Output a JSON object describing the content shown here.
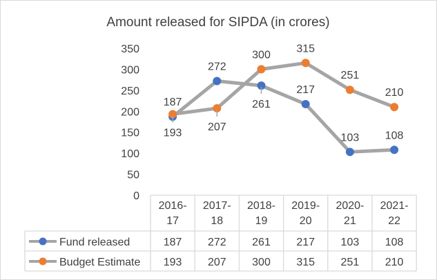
{
  "chart_data": {
    "type": "line",
    "title": "Amount released for SIPDA (in crores)",
    "categories": [
      "2016-17",
      "2017-18",
      "2018-19",
      "2019-20",
      "2020-21",
      "2021-22"
    ],
    "category_lines": [
      [
        "2016-",
        "17"
      ],
      [
        "2017-",
        "18"
      ],
      [
        "2018-",
        "19"
      ],
      [
        "2019-",
        "20"
      ],
      [
        "2020-",
        "21"
      ],
      [
        "2021-",
        "22"
      ]
    ],
    "yticks": [
      0,
      50,
      100,
      150,
      200,
      250,
      300,
      350
    ],
    "ylim": [
      0,
      350
    ],
    "grid": false,
    "legend": "data-table",
    "data_table": true,
    "series": [
      {
        "name": "Fund released",
        "values": [
          187,
          272,
          261,
          217,
          103,
          108
        ],
        "color": "#4472C4",
        "label_pos": [
          "above",
          "above",
          "below",
          "above",
          "above",
          "above"
        ]
      },
      {
        "name": "Budget Estimate",
        "values": [
          193,
          207,
          300,
          315,
          251,
          210
        ],
        "color": "#ED7D31",
        "label_pos": [
          "below",
          "below",
          "above",
          "above",
          "above",
          "above"
        ]
      }
    ],
    "line_color": "#A5A5A5"
  }
}
